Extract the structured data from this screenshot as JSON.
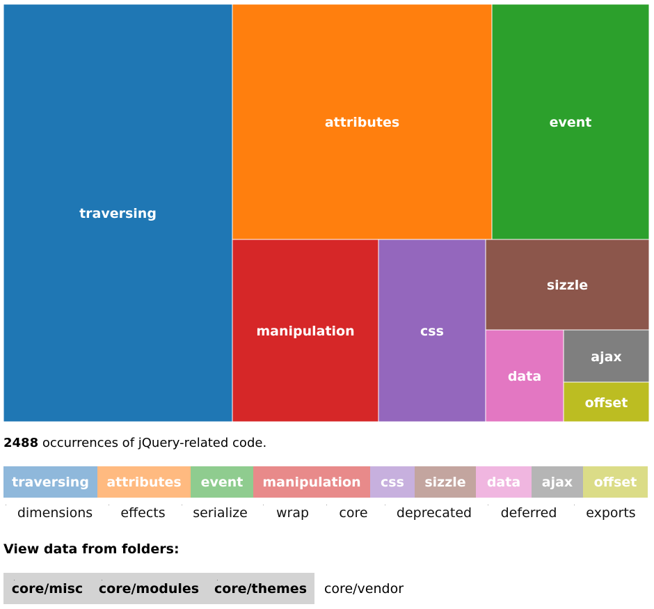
{
  "chart_data": {
    "type": "treemap",
    "total_label_number": "2488",
    "total_label_text": " occurrences of jQuery-related code.",
    "cells": [
      {
        "name": "traversing",
        "color": "#1f77b4"
      },
      {
        "name": "attributes",
        "color": "#ff7f0e"
      },
      {
        "name": "event",
        "color": "#2ca02c"
      },
      {
        "name": "manipulation",
        "color": "#d62728"
      },
      {
        "name": "css",
        "color": "#9467bd"
      },
      {
        "name": "sizzle",
        "color": "#8c564b"
      },
      {
        "name": "data",
        "color": "#e377c2"
      },
      {
        "name": "ajax",
        "color": "#7f7f7f"
      },
      {
        "name": "offset",
        "color": "#bcbd22"
      }
    ]
  },
  "legend": {
    "active": [
      {
        "label": "traversing",
        "color": "#8fb8db"
      },
      {
        "label": "attributes",
        "color": "#ffba80"
      },
      {
        "label": "event",
        "color": "#8fcc8f"
      },
      {
        "label": "manipulation",
        "color": "#e88a8a"
      },
      {
        "label": "css",
        "color": "#c7b0de"
      },
      {
        "label": "sizzle",
        "color": "#c3a59f"
      },
      {
        "label": "data",
        "color": "#f0b6e0"
      },
      {
        "label": "ajax",
        "color": "#b5b5b5"
      },
      {
        "label": "offset",
        "color": "#dbdc87"
      }
    ],
    "inactive": [
      {
        "label": "dimensions"
      },
      {
        "label": "effects"
      },
      {
        "label": "serialize"
      },
      {
        "label": "wrap"
      },
      {
        "label": "core"
      },
      {
        "label": "deprecated"
      },
      {
        "label": "deferred"
      },
      {
        "label": "exports"
      }
    ]
  },
  "folders": {
    "title": "View data from folders:",
    "items": [
      {
        "label": "core/misc",
        "selected": true
      },
      {
        "label": "core/modules",
        "selected": true
      },
      {
        "label": "core/themes",
        "selected": true
      },
      {
        "label": "core/vendor",
        "selected": false
      }
    ]
  }
}
